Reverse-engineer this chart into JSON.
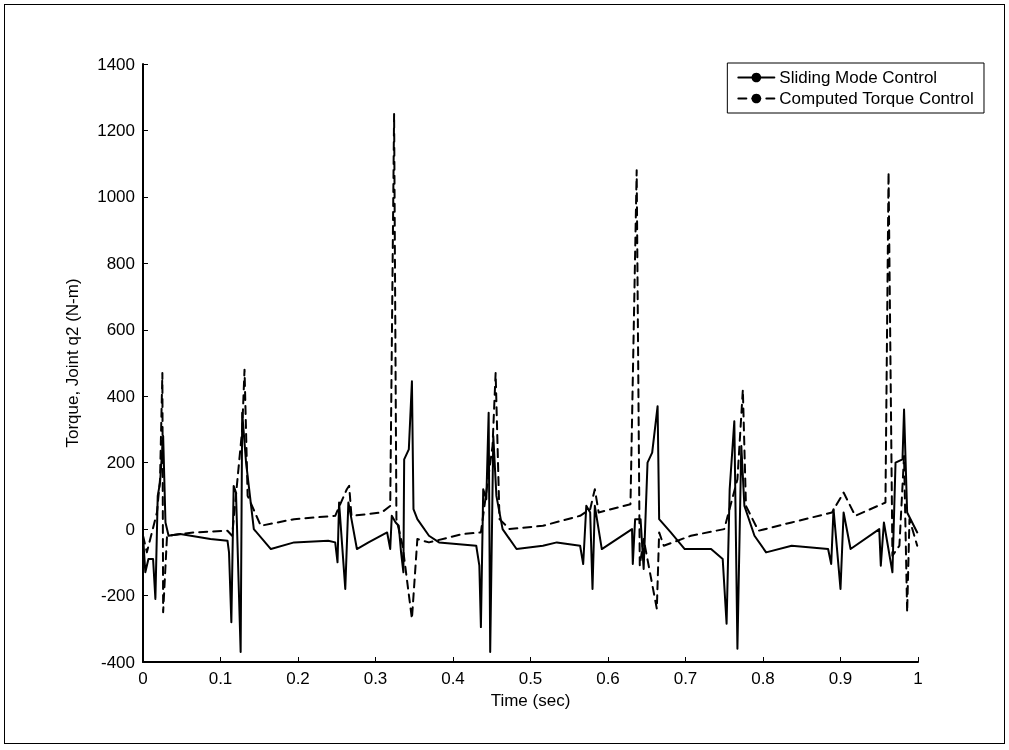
{
  "chart_data": {
    "type": "line",
    "xlabel": "Time (sec)",
    "ylabel": "Torque, Joint q2 (N-m)",
    "xlim": [
      0,
      1
    ],
    "xticks": [
      0,
      0.1,
      0.2,
      0.3,
      0.4,
      0.5,
      0.6,
      0.7,
      0.8,
      0.9,
      1
    ],
    "ylim": [
      -400,
      1400
    ],
    "yticks": [
      -400,
      -200,
      0,
      200,
      400,
      600,
      800,
      1000,
      1200,
      1400
    ],
    "grid": false,
    "legend": "top right",
    "marker": "none",
    "series": [
      {
        "name": "Sliding Mode Control",
        "color": "#000000",
        "line_style": "solid",
        "x": [
          0,
          0.003,
          0.007,
          0.013,
          0.016,
          0.019,
          0.022,
          0.026,
          0.029,
          0.033,
          0.048,
          0.087,
          0.109,
          0.111,
          0.114,
          0.117,
          0.12,
          0.126,
          0.128,
          0.133,
          0.143,
          0.165,
          0.195,
          0.239,
          0.248,
          0.251,
          0.253,
          0.261,
          0.265,
          0.269,
          0.276,
          0.291,
          0.315,
          0.319,
          0.321,
          0.326,
          0.33,
          0.333,
          0.336,
          0.337,
          0.343,
          0.347,
          0.349,
          0.354,
          0.369,
          0.382,
          0.43,
          0.434,
          0.436,
          0.439,
          0.443,
          0.446,
          0.448,
          0.452,
          0.456,
          0.464,
          0.482,
          0.516,
          0.534,
          0.564,
          0.568,
          0.572,
          0.577,
          0.58,
          0.583,
          0.592,
          0.631,
          0.632,
          0.635,
          0.642,
          0.646,
          0.651,
          0.657,
          0.664,
          0.666,
          0.681,
          0.699,
          0.733,
          0.748,
          0.753,
          0.757,
          0.763,
          0.767,
          0.772,
          0.776,
          0.789,
          0.804,
          0.837,
          0.884,
          0.888,
          0.891,
          0.9,
          0.904,
          0.913,
          0.95,
          0.952,
          0.956,
          0.967,
          0.971,
          0.98,
          0.982,
          0.986,
          0.999
        ],
        "values": [
          -20,
          -130,
          -90,
          -90,
          -210,
          100,
          140,
          280,
          20,
          -20,
          -15,
          -30,
          -35,
          -70,
          -280,
          130,
          110,
          -370,
          350,
          200,
          0,
          -60,
          -40,
          -35,
          -40,
          -100,
          80,
          -180,
          80,
          30,
          -60,
          -40,
          -10,
          -60,
          40,
          20,
          10,
          -70,
          -130,
          210,
          240,
          445,
          60,
          30,
          -20,
          -40,
          -50,
          -110,
          -295,
          120,
          90,
          350,
          -370,
          280,
          100,
          0,
          -60,
          -50,
          -40,
          -50,
          -105,
          70,
          50,
          -180,
          70,
          -60,
          0,
          -105,
          30,
          30,
          -120,
          200,
          230,
          370,
          30,
          -10,
          -60,
          -60,
          -90,
          -285,
          120,
          325,
          -360,
          250,
          70,
          -20,
          -70,
          -50,
          -60,
          -105,
          60,
          -180,
          50,
          -60,
          0,
          -110,
          20,
          -130,
          200,
          210,
          360,
          50,
          -10
        ]
      },
      {
        "name": "Computed Torque Control",
        "color": "#000000",
        "line_style": "dashed",
        "x": [
          0,
          0.005,
          0.018,
          0.022,
          0.025,
          0.026,
          0.031,
          0.065,
          0.109,
          0.115,
          0.128,
          0.131,
          0.135,
          0.152,
          0.195,
          0.248,
          0.263,
          0.266,
          0.269,
          0.308,
          0.319,
          0.324,
          0.327,
          0.335,
          0.347,
          0.354,
          0.369,
          0.412,
          0.436,
          0.451,
          0.455,
          0.46,
          0.473,
          0.516,
          0.564,
          0.577,
          0.583,
          0.588,
          0.629,
          0.637,
          0.641,
          0.646,
          0.663,
          0.666,
          0.672,
          0.707,
          0.75,
          0.767,
          0.774,
          0.778,
          0.794,
          0.837,
          0.889,
          0.904,
          0.919,
          0.958,
          0.962,
          0.967,
          0.976,
          0.982,
          0.986,
          0.989,
          0.999
        ],
        "values": [
          -20,
          -70,
          50,
          150,
          470,
          -250,
          -20,
          -10,
          -5,
          -20,
          300,
          480,
          100,
          10,
          30,
          40,
          120,
          130,
          40,
          50,
          70,
          1250,
          30,
          -50,
          -270,
          -30,
          -40,
          -15,
          -10,
          250,
          470,
          30,
          0,
          10,
          40,
          60,
          120,
          50,
          75,
          1080,
          -110,
          -30,
          -240,
          -10,
          -50,
          -20,
          0,
          150,
          420,
          70,
          -5,
          20,
          50,
          110,
          40,
          80,
          1075,
          -80,
          -50,
          220,
          -250,
          30,
          -50
        ]
      }
    ]
  }
}
